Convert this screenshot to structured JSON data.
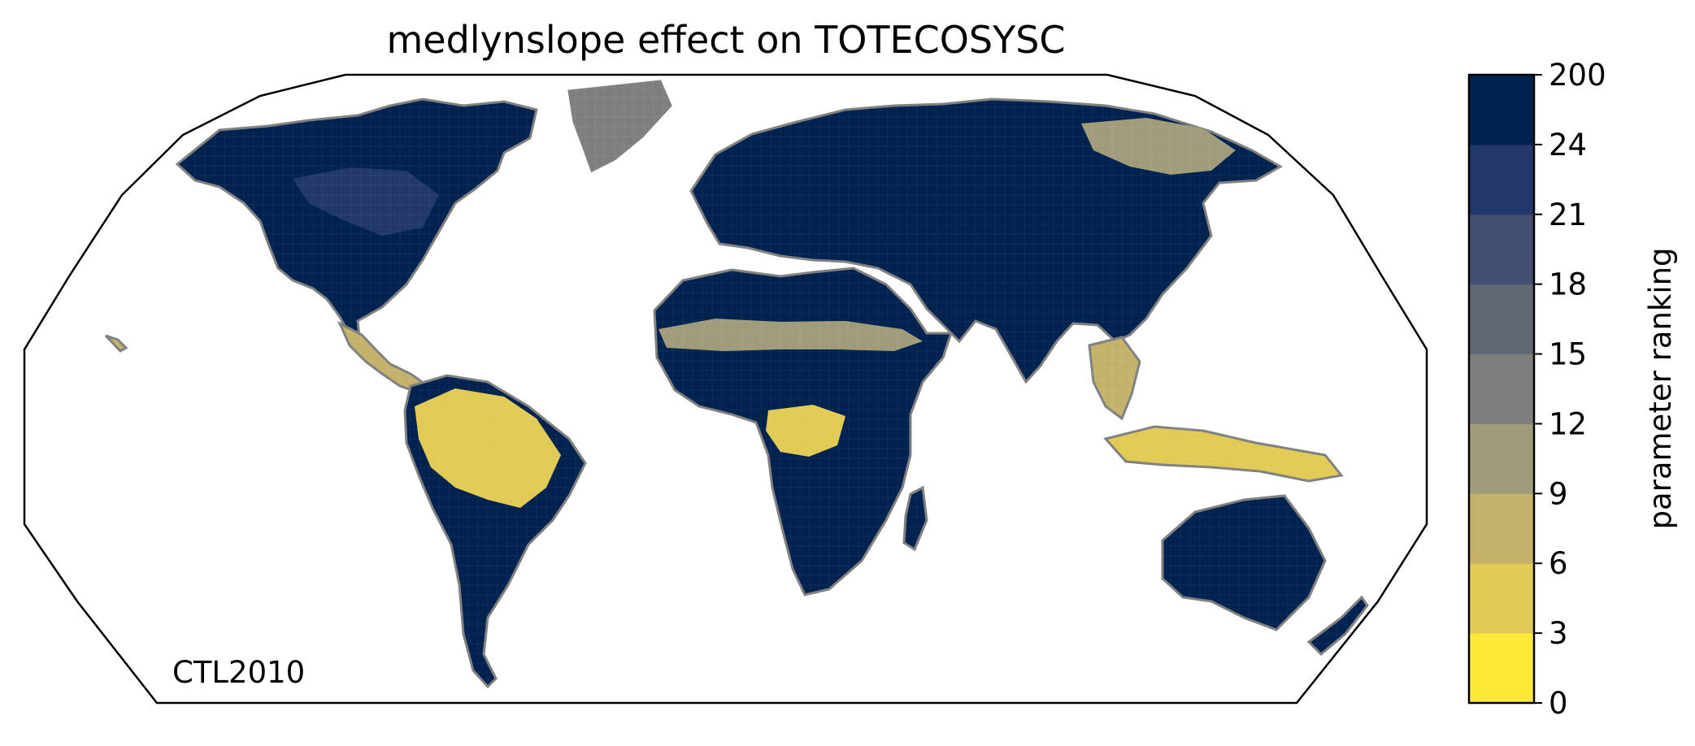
{
  "title": "medlynslope effect on TOTECOSYSC",
  "annotation": "CTL2010",
  "map": {
    "projection": "Robinson (global)",
    "coastlines": true,
    "coastline_color": "#808080",
    "variable": "parameter ranking of medlynslope for TOTECOSYSC",
    "region_values": [
      {
        "region": "Greenland",
        "value": 13
      },
      {
        "region": "North America",
        "value": 25
      },
      {
        "region": "Canadian interior",
        "value": 23
      },
      {
        "region": "Central America",
        "value": 8
      },
      {
        "region": "Amazon basin",
        "value": 5
      },
      {
        "region": "Southern South America",
        "value": 25
      },
      {
        "region": "Europe",
        "value": 25
      },
      {
        "region": "Northern Asia",
        "value": 25
      },
      {
        "region": "Eastern Siberia",
        "value": 9
      },
      {
        "region": "Sahel",
        "value": 10
      },
      {
        "region": "Northern Africa",
        "value": 25
      },
      {
        "region": "Congo basin",
        "value": 5
      },
      {
        "region": "Southern Africa",
        "value": 25
      },
      {
        "region": "India",
        "value": 25
      },
      {
        "region": "Southeast Asia",
        "value": 7
      },
      {
        "region": "Maritime continent",
        "value": 6
      },
      {
        "region": "Australia",
        "value": 25
      }
    ]
  },
  "colorbar": {
    "label": "parameter ranking",
    "tick_labels": [
      "0",
      "3",
      "6",
      "9",
      "12",
      "15",
      "18",
      "21",
      "24",
      "200"
    ],
    "colors": [
      "#fee838",
      "#e1cb55",
      "#c4b26b",
      "#a09b7a",
      "#7e7e7e",
      "#616774",
      "#434f6f",
      "#22386b",
      "#00224e"
    ]
  }
}
